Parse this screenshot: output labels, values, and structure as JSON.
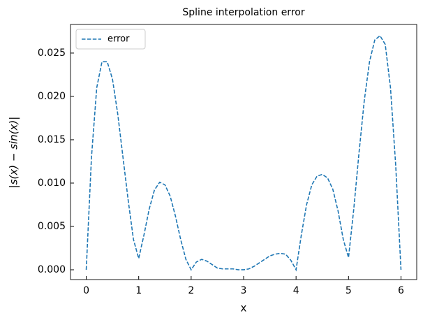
{
  "chart_data": {
    "type": "line",
    "title": "Spline interpolation error",
    "xlabel": "x",
    "ylabel": "|s(x) − sin(x)|",
    "x": [
      0,
      0.1,
      0.2,
      0.3,
      0.4,
      0.5,
      0.6,
      0.7,
      0.8,
      0.9,
      1.0,
      1.1,
      1.2,
      1.3,
      1.4,
      1.5,
      1.6,
      1.7,
      1.8,
      1.9,
      2.0,
      2.1,
      2.2,
      2.3,
      2.4,
      2.5,
      2.6,
      2.7,
      2.8,
      2.9,
      3.0,
      3.1,
      3.2,
      3.3,
      3.4,
      3.5,
      3.6,
      3.7,
      3.8,
      3.9,
      4.0,
      4.1,
      4.2,
      4.3,
      4.4,
      4.5,
      4.6,
      4.7,
      4.8,
      4.9,
      5.0,
      5.1,
      5.2,
      5.3,
      5.4,
      5.5,
      5.6,
      5.7,
      5.8,
      5.9,
      6.0
    ],
    "series": [
      {
        "name": "error",
        "color": "#1f77b4",
        "values": [
          0,
          0.013,
          0.021,
          0.024,
          0.024,
          0.022,
          0.018,
          0.013,
          0.008,
          0.0035,
          0.0013,
          0.004,
          0.007,
          0.0092,
          0.0101,
          0.0098,
          0.0085,
          0.0062,
          0.0035,
          0.0012,
          0.0,
          0.0009,
          0.0012,
          0.001,
          0.0006,
          0.0002,
          0.0001,
          0.0001,
          0.0001,
          0.0,
          0.0,
          0.0001,
          0.0004,
          0.0008,
          0.0012,
          0.0016,
          0.0018,
          0.0019,
          0.0018,
          0.0011,
          0.0,
          0.004,
          0.0075,
          0.0098,
          0.0108,
          0.011,
          0.0106,
          0.0093,
          0.0068,
          0.0035,
          0.0014,
          0.007,
          0.0135,
          0.0195,
          0.024,
          0.0265,
          0.027,
          0.026,
          0.021,
          0.012,
          0.0
        ]
      }
    ],
    "xlim": [
      -0.3,
      6.3
    ],
    "xticks": [
      0,
      1,
      2,
      3,
      4,
      5,
      6
    ],
    "ylim": [
      -0.00113,
      0.0283
    ],
    "yticks": [
      {
        "value": 0,
        "label": "0.000"
      },
      {
        "value": 0.005,
        "label": "0.005"
      },
      {
        "value": 0.01,
        "label": "0.010"
      },
      {
        "value": 0.015,
        "label": "0.015"
      },
      {
        "value": 0.02,
        "label": "0.020"
      },
      {
        "value": 0.025,
        "label": "0.025"
      }
    ],
    "legend": "upper left",
    "grid": false
  }
}
